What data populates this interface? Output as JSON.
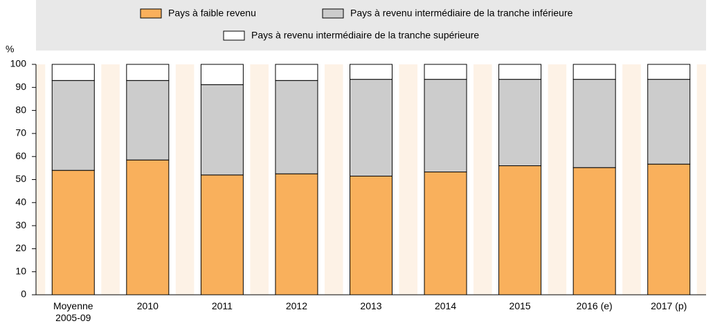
{
  "chart_data": {
    "type": "stacked_bar",
    "y_label": "%",
    "categories": [
      "Moyenne 2005-09",
      "2010",
      "2011",
      "2012",
      "2013",
      "2014",
      "2015",
      "2016 (e)",
      "2017 (p)"
    ],
    "series": [
      {
        "name": "Pays à faible revenu",
        "color": "#f9b05c",
        "values": [
          54,
          58.5,
          52,
          52.5,
          51.5,
          53.3,
          56,
          55.2,
          56.7
        ]
      },
      {
        "name": "Pays à revenu intermédiaire de la tranche inférieure",
        "color": "#cccccc",
        "values": [
          39,
          34.5,
          39.2,
          40.5,
          42,
          40.2,
          37.5,
          38.3,
          36.8
        ]
      },
      {
        "name": "Pays à revenu intermédiaire de la tranche supérieure",
        "color": "#ffffff",
        "values": [
          7,
          7,
          8.8,
          7,
          6.5,
          6.5,
          6.5,
          6.5,
          6.5
        ]
      }
    ],
    "ylim": [
      0,
      100
    ],
    "yticks": [
      0,
      10,
      20,
      30,
      40,
      50,
      60,
      70,
      80,
      90,
      100
    ],
    "legend": "top"
  }
}
